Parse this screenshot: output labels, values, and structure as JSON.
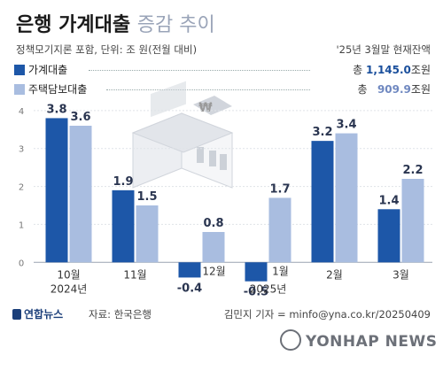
{
  "header": {
    "title_bold": "은행 가계대출",
    "title_light": "증감 추이",
    "subtitle": "정책모기지론 포함, 단위: 조 원(전월 대비)",
    "note": "'25년 3월말 현재잔액"
  },
  "legend": [
    {
      "label": "가계대출",
      "total_prefix": "총",
      "total_value": "1,145.0",
      "total_unit": "조원",
      "color": "#1d57a8"
    },
    {
      "label": "주택담보대출",
      "total_prefix": "총",
      "total_value": "909.9",
      "total_unit": "조원",
      "color": "#a9bde0"
    }
  ],
  "footer": {
    "logo_text": "연합뉴스",
    "source": "자료: 한국은행",
    "credit": "김민지 기자 = minfo@yna.co.kr/20250409",
    "watermark": "YONHAP NEWS"
  },
  "chart_data": {
    "type": "bar",
    "title": "은행 가계대출 증감 추이",
    "ylabel": "",
    "ylim": [
      -0.6,
      4.3
    ],
    "yticks": [
      0,
      1,
      2,
      3,
      4
    ],
    "categories": [
      "10월",
      "11월",
      "12월",
      "1월",
      "2월",
      "3월"
    ],
    "year_labels": [
      {
        "index": 0,
        "label": "2024년"
      },
      {
        "index": 3,
        "label": "2025년"
      }
    ],
    "series": [
      {
        "name": "가계대출",
        "color": "#1d57a8",
        "values": [
          3.8,
          1.9,
          -0.4,
          -0.5,
          3.2,
          1.4
        ],
        "labels": [
          "3.8",
          "1.9",
          "-0.4",
          "-0.5",
          "3.2",
          "1.4"
        ]
      },
      {
        "name": "주택담보대출",
        "color": "#a9bde0",
        "values": [
          3.6,
          1.5,
          0.8,
          1.7,
          3.4,
          2.2
        ],
        "labels": [
          "3.6",
          "1.5",
          "0.8",
          "1.7",
          "3.4",
          "2.2"
        ]
      }
    ]
  }
}
